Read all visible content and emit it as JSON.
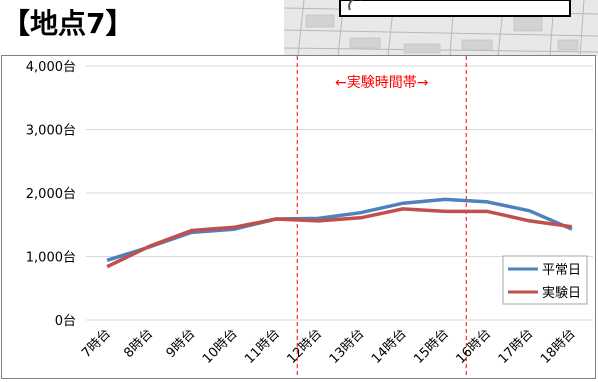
{
  "heading": "【地点7】",
  "map_thumbnail": {
    "icon": "street-map-thumbnail"
  },
  "colors": {
    "series_heijitsu": "#4f81bd",
    "series_jikken": "#c0504d",
    "period_marker": "#ff0000",
    "gridline": "#d9d9d9"
  },
  "chart_data": {
    "type": "line",
    "title": "",
    "xlabel": "",
    "ylabel": "",
    "categories": [
      "7時台",
      "8時台",
      "9時台",
      "10時台",
      "11時台",
      "12時台",
      "13時台",
      "14時台",
      "15時台",
      "16時台",
      "17時台",
      "18時台"
    ],
    "ylim": [
      0,
      4000
    ],
    "yticks": [
      0,
      1000,
      2000,
      3000,
      4000
    ],
    "ytick_labels": [
      "0台",
      "1,000台",
      "2,000台",
      "3,000台",
      "4,000台"
    ],
    "grid": true,
    "legend_position": "right",
    "series": [
      {
        "name": "平常日",
        "values": [
          940,
          1150,
          1380,
          1430,
          1590,
          1600,
          1690,
          1840,
          1900,
          1860,
          1720,
          1430
        ]
      },
      {
        "name": "実験日",
        "values": [
          840,
          1160,
          1410,
          1460,
          1590,
          1560,
          1610,
          1750,
          1710,
          1710,
          1560,
          1470
        ]
      }
    ],
    "annotation": {
      "label": "←実験時間帯→",
      "start_between": [
        "11時台",
        "12時台"
      ],
      "end_between": [
        "15時台",
        "16時台"
      ]
    }
  }
}
